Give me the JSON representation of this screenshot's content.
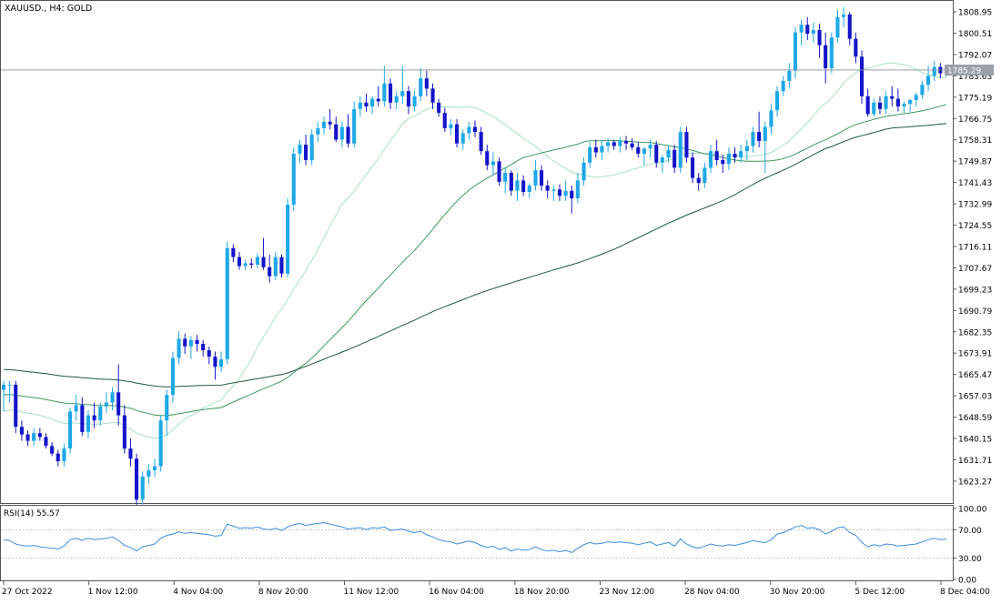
{
  "header": {
    "symbol_label": "XAUUSD., H4:  GOLD"
  },
  "price_label": "1785.29",
  "rsi_label": "RSI(14) 55.57",
  "price_axis_ticks": [
    "1808.95",
    "1800.51",
    "1792.07",
    "1783.63",
    "1775.19",
    "1766.75",
    "1758.31",
    "1749.87",
    "1741.43",
    "1732.99",
    "1724.55",
    "1716.11",
    "1707.67",
    "1699.23",
    "1690.79",
    "1682.35",
    "1673.91",
    "1665.47",
    "1657.03",
    "1648.59",
    "1640.15",
    "1631.71",
    "1623.27"
  ],
  "rsi_axis_ticks": [
    "100.00",
    "70.00",
    "30.00",
    "0.00"
  ],
  "time_axis_ticks": [
    "27 Oct 2022",
    "1 Nov 12:00",
    "4 Nov 04:00",
    "8 Nov 20:00",
    "11 Nov 12:00",
    "16 Nov 04:00",
    "18 Nov 20:00",
    "23 Nov 12:00",
    "28 Nov 04:00",
    "30 Nov 20:00",
    "5 Dec 12:00",
    "8 Dec 04:00"
  ],
  "colors": {
    "bull": "#1ea8e8",
    "bear": "#1414c8",
    "ma_fast": "#a8e0c0",
    "ma_mid": "#3a9a5a",
    "ma_slow": "#1e5a3a",
    "rsi": "#3a8ce0",
    "grid_line": "#888888",
    "price_tag_bg": "#9aa0a8"
  },
  "chart_data": {
    "type": "candlestick",
    "title": "XAUUSD., H4:  GOLD",
    "ylim": [
      1616,
      1812
    ],
    "current_price": 1785.29,
    "candle_colors": "light blue = bullish, dark blue = bearish",
    "ohlc": [
      [
        1660.0,
        1663.5,
        1651.5,
        1662.0
      ],
      [
        1662.0,
        1663.5,
        1655.0,
        1662.0
      ],
      [
        1662.0,
        1663.5,
        1643.0,
        1645.5
      ],
      [
        1645.5,
        1648.0,
        1640.0,
        1642.5
      ],
      [
        1642.5,
        1644.0,
        1638.0,
        1640.0
      ],
      [
        1640.0,
        1645.0,
        1638.0,
        1643.0
      ],
      [
        1643.0,
        1645.0,
        1640.0,
        1641.5
      ],
      [
        1641.5,
        1643.0,
        1637.0,
        1638.0
      ],
      [
        1638.0,
        1639.5,
        1634.0,
        1635.0
      ],
      [
        1635.0,
        1636.5,
        1630.0,
        1632.0
      ],
      [
        1632.0,
        1639.0,
        1630.0,
        1637.0
      ],
      [
        1637.0,
        1653.0,
        1635.0,
        1651.5
      ],
      [
        1651.5,
        1658.0,
        1648.0,
        1654.0
      ],
      [
        1654.0,
        1657.0,
        1642.0,
        1643.5
      ],
      [
        1643.5,
        1652.0,
        1641.0,
        1650.0
      ],
      [
        1650.0,
        1655.0,
        1645.0,
        1648.0
      ],
      [
        1648.0,
        1655.0,
        1646.0,
        1653.5
      ],
      [
        1653.5,
        1659.0,
        1651.0,
        1655.0
      ],
      [
        1655.0,
        1661.0,
        1652.0,
        1659.0
      ],
      [
        1659.0,
        1670.0,
        1646.0,
        1650.0
      ],
      [
        1650.0,
        1654.0,
        1635.0,
        1637.0
      ],
      [
        1637.0,
        1641.0,
        1630.0,
        1633.0
      ],
      [
        1633.0,
        1635.0,
        1615.0,
        1617.0
      ],
      [
        1617.0,
        1628.0,
        1615.0,
        1626.0
      ],
      [
        1626.0,
        1631.0,
        1623.0,
        1628.5
      ],
      [
        1628.5,
        1633.0,
        1626.0,
        1630.0
      ],
      [
        1630.0,
        1650.0,
        1628.0,
        1648.0
      ],
      [
        1648.0,
        1660.0,
        1642.0,
        1658.0
      ],
      [
        1658.0,
        1675.0,
        1655.0,
        1672.5
      ],
      [
        1672.5,
        1683.0,
        1670.0,
        1680.0
      ],
      [
        1680.0,
        1682.0,
        1674.0,
        1677.0
      ],
      [
        1677.0,
        1681.0,
        1672.0,
        1679.5
      ],
      [
        1679.5,
        1681.5,
        1675.0,
        1678.0
      ],
      [
        1678.0,
        1679.5,
        1673.0,
        1675.5
      ],
      [
        1675.5,
        1677.0,
        1670.0,
        1673.0
      ],
      [
        1673.0,
        1675.0,
        1664.0,
        1669.0
      ],
      [
        1669.0,
        1675.0,
        1667.0,
        1672.0
      ],
      [
        1672.0,
        1718.0,
        1670.0,
        1715.5
      ],
      [
        1715.5,
        1717.0,
        1710.0,
        1712.0
      ],
      [
        1712.0,
        1714.0,
        1707.0,
        1708.5
      ],
      [
        1708.5,
        1711.0,
        1707.0,
        1709.5
      ],
      [
        1709.5,
        1711.5,
        1707.5,
        1709.0
      ],
      [
        1709.0,
        1713.5,
        1707.5,
        1712.0
      ],
      [
        1712.0,
        1719.5,
        1707.0,
        1708.0
      ],
      [
        1708.0,
        1713.0,
        1702.0,
        1704.5
      ],
      [
        1704.5,
        1714.0,
        1703.0,
        1712.0
      ],
      [
        1712.0,
        1713.0,
        1704.0,
        1705.5
      ],
      [
        1705.5,
        1735.0,
        1704.0,
        1732.5
      ],
      [
        1732.5,
        1755.0,
        1730.0,
        1752.5
      ],
      [
        1752.5,
        1758.0,
        1749.0,
        1756.0
      ],
      [
        1756.0,
        1760.0,
        1748.0,
        1750.0
      ],
      [
        1750.0,
        1762.0,
        1748.0,
        1760.0
      ],
      [
        1760.0,
        1765.0,
        1757.0,
        1762.5
      ],
      [
        1762.5,
        1767.0,
        1760.0,
        1765.0
      ],
      [
        1765.0,
        1770.0,
        1762.0,
        1764.0
      ],
      [
        1764.0,
        1767.0,
        1757.0,
        1758.0
      ],
      [
        1758.0,
        1765.0,
        1755.0,
        1763.0
      ],
      [
        1763.0,
        1768.0,
        1755.0,
        1756.5
      ],
      [
        1756.5,
        1773.0,
        1755.0,
        1770.0
      ],
      [
        1770.0,
        1775.0,
        1767.0,
        1772.5
      ],
      [
        1772.5,
        1776.0,
        1769.0,
        1771.0
      ],
      [
        1771.0,
        1775.0,
        1768.0,
        1774.0
      ],
      [
        1774.0,
        1779.0,
        1771.0,
        1773.0
      ],
      [
        1773.0,
        1787.0,
        1771.0,
        1780.0
      ],
      [
        1780.0,
        1782.0,
        1770.0,
        1772.5
      ],
      [
        1772.5,
        1777.0,
        1770.0,
        1775.0
      ],
      [
        1775.0,
        1787.0,
        1772.0,
        1777.0
      ],
      [
        1777.0,
        1779.0,
        1768.0,
        1771.0
      ],
      [
        1771.0,
        1777.0,
        1769.0,
        1775.0
      ],
      [
        1775.0,
        1786.0,
        1773.0,
        1782.0
      ],
      [
        1782.0,
        1785.0,
        1775.0,
        1778.0
      ],
      [
        1778.0,
        1780.0,
        1770.0,
        1772.5
      ],
      [
        1772.5,
        1774.0,
        1767.0,
        1768.5
      ],
      [
        1768.5,
        1770.5,
        1761.0,
        1762.5
      ],
      [
        1762.5,
        1766.0,
        1760.0,
        1764.0
      ],
      [
        1764.0,
        1766.0,
        1755.0,
        1756.5
      ],
      [
        1756.5,
        1762.0,
        1754.0,
        1760.5
      ],
      [
        1760.5,
        1765.0,
        1758.0,
        1763.0
      ],
      [
        1763.0,
        1765.5,
        1759.0,
        1761.0
      ],
      [
        1761.0,
        1763.0,
        1752.0,
        1753.5
      ],
      [
        1753.5,
        1756.0,
        1746.0,
        1748.0
      ],
      [
        1748.0,
        1753.0,
        1744.0,
        1749.5
      ],
      [
        1749.5,
        1751.0,
        1740.0,
        1741.5
      ],
      [
        1741.5,
        1747.0,
        1737.0,
        1745.0
      ],
      [
        1745.0,
        1746.0,
        1736.0,
        1738.0
      ],
      [
        1738.0,
        1745.0,
        1734.0,
        1742.0
      ],
      [
        1742.0,
        1744.0,
        1736.0,
        1737.5
      ],
      [
        1737.5,
        1741.0,
        1735.0,
        1740.0
      ],
      [
        1740.0,
        1750.0,
        1738.0,
        1746.0
      ],
      [
        1746.0,
        1748.0,
        1738.0,
        1740.0
      ],
      [
        1740.0,
        1742.0,
        1735.0,
        1738.0
      ],
      [
        1738.0,
        1740.0,
        1734.0,
        1738.5
      ],
      [
        1738.5,
        1740.5,
        1734.0,
        1736.0
      ],
      [
        1736.0,
        1742.0,
        1734.0,
        1738.0
      ],
      [
        1738.0,
        1740.0,
        1729.0,
        1735.0
      ],
      [
        1735.0,
        1745.0,
        1733.0,
        1742.0
      ],
      [
        1742.0,
        1751.0,
        1740.0,
        1749.0
      ],
      [
        1749.0,
        1757.0,
        1747.0,
        1755.0
      ],
      [
        1755.0,
        1758.0,
        1751.0,
        1753.0
      ],
      [
        1753.0,
        1758.0,
        1750.0,
        1755.5
      ],
      [
        1755.5,
        1758.5,
        1753.0,
        1757.0
      ],
      [
        1757.0,
        1758.0,
        1754.0,
        1755.5
      ],
      [
        1755.5,
        1759.0,
        1753.0,
        1757.5
      ],
      [
        1757.5,
        1759.5,
        1754.0,
        1756.5
      ],
      [
        1756.5,
        1758.5,
        1754.0,
        1755.0
      ],
      [
        1755.0,
        1757.0,
        1751.0,
        1752.5
      ],
      [
        1752.5,
        1755.0,
        1748.0,
        1754.5
      ],
      [
        1754.5,
        1758.0,
        1751.0,
        1756.0
      ],
      [
        1756.0,
        1757.5,
        1747.0,
        1749.0
      ],
      [
        1749.0,
        1752.0,
        1745.0,
        1751.0
      ],
      [
        1751.0,
        1756.0,
        1749.0,
        1754.0
      ],
      [
        1754.0,
        1756.0,
        1745.0,
        1747.0
      ],
      [
        1747.0,
        1763.0,
        1745.0,
        1761.0
      ],
      [
        1761.0,
        1763.0,
        1749.0,
        1751.0
      ],
      [
        1751.0,
        1753.0,
        1741.0,
        1743.0
      ],
      [
        1743.0,
        1745.0,
        1738.0,
        1741.0
      ],
      [
        1741.0,
        1749.0,
        1739.0,
        1747.0
      ],
      [
        1747.0,
        1756.0,
        1745.0,
        1753.5
      ],
      [
        1753.5,
        1758.0,
        1748.0,
        1750.0
      ],
      [
        1750.0,
        1752.0,
        1745.0,
        1748.5
      ],
      [
        1748.5,
        1755.0,
        1746.0,
        1752.5
      ],
      [
        1752.5,
        1755.0,
        1749.0,
        1751.0
      ],
      [
        1751.0,
        1756.0,
        1749.0,
        1753.5
      ],
      [
        1753.5,
        1758.0,
        1750.0,
        1755.5
      ],
      [
        1755.5,
        1763.0,
        1753.0,
        1761.0
      ],
      [
        1761.0,
        1769.0,
        1755.0,
        1757.5
      ],
      [
        1757.5,
        1765.0,
        1745.0,
        1763.0
      ],
      [
        1763.0,
        1772.0,
        1760.0,
        1769.5
      ],
      [
        1769.5,
        1779.0,
        1767.0,
        1777.0
      ],
      [
        1777.0,
        1783.0,
        1775.0,
        1781.0
      ],
      [
        1781.0,
        1788.0,
        1778.0,
        1785.0
      ],
      [
        1785.0,
        1802.0,
        1782.0,
        1800.0
      ],
      [
        1800.0,
        1805.0,
        1795.0,
        1803.0
      ],
      [
        1803.0,
        1806.0,
        1797.0,
        1799.5
      ],
      [
        1799.5,
        1804.0,
        1796.0,
        1801.0
      ],
      [
        1801.0,
        1803.5,
        1790.0,
        1795.0
      ],
      [
        1795.0,
        1800.0,
        1780.0,
        1786.0
      ],
      [
        1786.0,
        1800.0,
        1784.0,
        1798.0
      ],
      [
        1798.0,
        1809.0,
        1796.0,
        1806.0
      ],
      [
        1806.0,
        1810.0,
        1802.0,
        1807.0
      ],
      [
        1807.0,
        1808.0,
        1795.0,
        1797.5
      ],
      [
        1797.5,
        1800.0,
        1788.0,
        1790.5
      ],
      [
        1790.5,
        1793.0,
        1772.0,
        1775.0
      ],
      [
        1775.0,
        1778.0,
        1767.0,
        1768.0
      ],
      [
        1768.0,
        1774.0,
        1767.0,
        1772.5
      ],
      [
        1772.5,
        1775.0,
        1768.0,
        1770.0
      ],
      [
        1770.0,
        1777.0,
        1768.0,
        1775.0
      ],
      [
        1775.0,
        1779.0,
        1771.0,
        1774.0
      ],
      [
        1774.0,
        1778.0,
        1769.0,
        1771.0
      ],
      [
        1771.0,
        1773.0,
        1768.5,
        1772.0
      ],
      [
        1772.0,
        1774.0,
        1769.0,
        1773.5
      ],
      [
        1773.5,
        1776.5,
        1771.0,
        1775.5
      ],
      [
        1775.5,
        1781.0,
        1774.0,
        1779.5
      ],
      [
        1779.5,
        1787.0,
        1777.0,
        1783.0
      ],
      [
        1783.0,
        1789.0,
        1781.0,
        1786.5
      ],
      [
        1786.5,
        1788.0,
        1782.0,
        1784.0
      ],
      [
        1784.0,
        1786.0,
        1782.5,
        1785.29
      ]
    ]
  },
  "indicator_data": {
    "rsi_period": 14,
    "rsi_value": 55.57,
    "rsi_levels": [
      70,
      30
    ],
    "rsi": [
      56,
      55,
      50,
      48,
      47,
      48,
      46,
      45,
      44,
      43,
      47,
      56,
      58,
      55,
      58,
      56,
      57,
      58,
      60,
      55,
      48,
      45,
      40,
      46,
      48,
      50,
      58,
      62,
      64,
      67,
      65,
      66,
      65,
      64,
      63,
      61,
      62,
      78,
      75,
      72,
      73,
      72,
      74,
      71,
      70,
      72,
      69,
      74,
      77,
      79,
      76,
      78,
      79,
      80,
      78,
      76,
      74,
      71,
      72,
      73,
      70,
      73,
      72,
      74,
      69,
      70,
      71,
      68,
      66,
      68,
      63,
      60,
      56,
      54,
      53,
      50,
      52,
      54,
      52,
      48,
      45,
      47,
      42,
      45,
      40,
      43,
      41,
      42,
      46,
      42,
      40,
      41,
      39,
      41,
      38,
      44,
      49,
      52,
      50,
      51,
      53,
      52,
      53,
      52,
      51,
      49,
      51,
      53,
      48,
      50,
      52,
      47,
      57,
      50,
      46,
      44,
      47,
      50,
      48,
      47,
      49,
      48,
      50,
      52,
      55,
      53,
      52,
      56,
      64,
      66,
      70,
      74,
      76,
      72,
      73,
      70,
      64,
      68,
      73,
      74,
      66,
      62,
      52,
      46,
      49,
      47,
      50,
      49,
      47,
      48,
      49,
      50,
      53,
      56,
      58,
      56,
      57
    ]
  }
}
